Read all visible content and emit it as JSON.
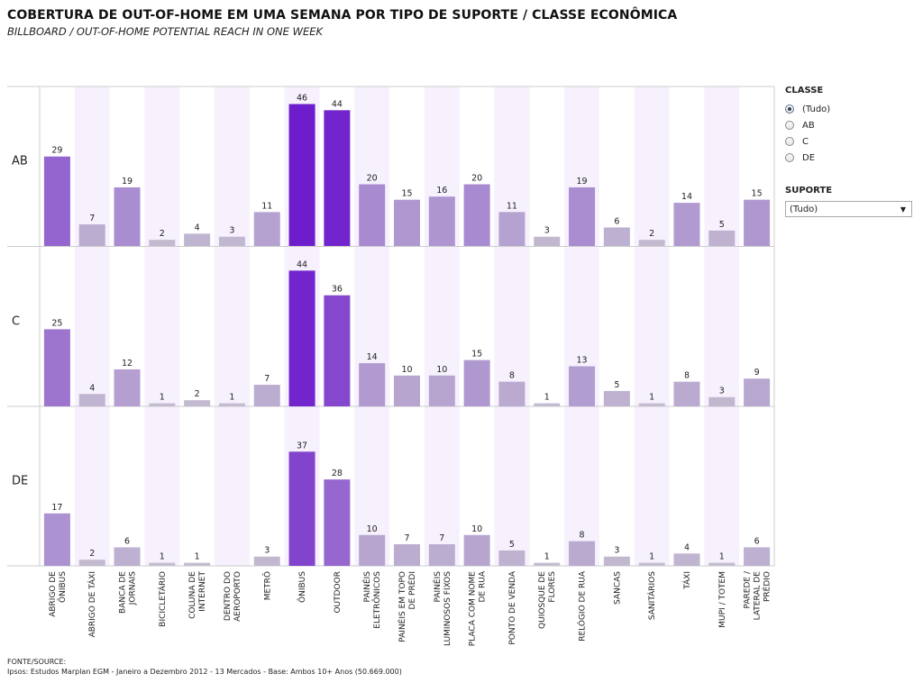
{
  "header": {
    "title": "COBERTURA DE OUT-OF-HOME EM UMA SEMANA POR TIPO DE SUPORTE / CLASSE ECONÔMICA",
    "subtitle": "BILLBOARD / OUT-OF-HOME POTENTIAL REACH IN ONE WEEK"
  },
  "filters": {
    "classe": {
      "title": "CLASSE",
      "options": [
        "(Tudo)",
        "AB",
        "C",
        "DE"
      ],
      "selected": "(Tudo)"
    },
    "suporte": {
      "title": "SUPORTE",
      "value": "(Tudo)"
    }
  },
  "source": {
    "label": "FONTE/SOURCE:",
    "text": "Ipsos: Estudos Marplan EGM - Janeiro a Dezembro 2012 - 13 Mercados - Base: Ambos 10+ Anos (50.669.000)"
  },
  "colors": {
    "low": "#c4bdd0",
    "mid": "#a88ad0",
    "high": "#6e1dcc",
    "band": "#f6f1fd",
    "grid": "#cccccc"
  },
  "chart_data": {
    "type": "bar",
    "categories": [
      "ABRIGO DE\nÔNIBUS",
      "ABRIGO DE TÁXI",
      "BANCA DE\nJORNAIS",
      "BICICLETÁRIO",
      "COLUNA DE\nINTERNET",
      "DENTRO DO\nAEROPORTO",
      "METRÔ",
      "ÔNIBUS",
      "OUTDOOR",
      "PAINÉIS\nELETRÔNICOS",
      "PAINÉIS EM TOPO\nDE PRÉDI",
      "PAINÉIS\nLUMINOSOS FIXOS",
      "PLACA COM NOME\nDE RUA",
      "PONTO DE VENDA",
      "QUIOSQUE DE\nFLORES",
      "RELÓGIO DE RUA",
      "SANCAS",
      "SANITÁRIOS",
      "TÁXI",
      "MUPI / TOTEM",
      "PAREDE /\nLATERAL DE\nPRÉDIO"
    ],
    "series": [
      {
        "name": "AB",
        "values": [
          29,
          7,
          19,
          2,
          4,
          3,
          11,
          46,
          44,
          20,
          15,
          16,
          20,
          11,
          3,
          19,
          6,
          2,
          14,
          5,
          15
        ]
      },
      {
        "name": "C",
        "values": [
          25,
          4,
          12,
          1,
          2,
          1,
          7,
          44,
          36,
          14,
          10,
          10,
          15,
          8,
          1,
          13,
          5,
          1,
          8,
          3,
          9
        ]
      },
      {
        "name": "DE",
        "values": [
          17,
          2,
          6,
          1,
          1,
          null,
          3,
          37,
          28,
          10,
          7,
          7,
          10,
          5,
          1,
          8,
          3,
          1,
          4,
          1,
          6
        ]
      }
    ],
    "ylim": [
      0,
      50
    ],
    "grid": true,
    "legend": "right"
  }
}
